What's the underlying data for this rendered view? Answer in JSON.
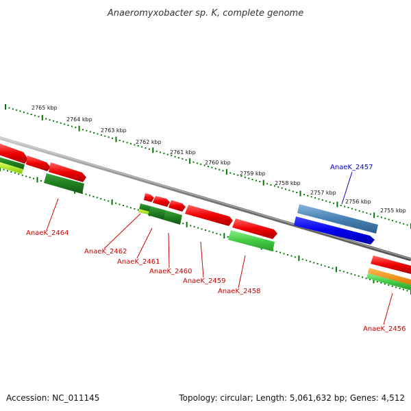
{
  "title": "Anaeromyxobacter sp. K, complete genome",
  "footer": {
    "accession": "Accession: NC_011145",
    "summary": "Topology: circular; Length: 5,061,632 bp; Genes: 4,512"
  },
  "scale_labels": [
    "2765 kbp",
    "2764 kbp",
    "2763 kbp",
    "2762 kbp",
    "2761 kbp",
    "2760 kbp",
    "2759 kbp",
    "2758 kbp",
    "2757 kbp",
    "2756 kbp",
    "2755 kbp"
  ],
  "gene_labels": [
    {
      "text": "AnaeK_2464",
      "color": "#cc0000"
    },
    {
      "text": "AnaeK_2462",
      "color": "#cc0000"
    },
    {
      "text": "AnaeK_2461",
      "color": "#cc0000"
    },
    {
      "text": "AnaeK_2460",
      "color": "#cc0000"
    },
    {
      "text": "AnaeK_2459",
      "color": "#cc0000"
    },
    {
      "text": "AnaeK_2458",
      "color": "#cc0000"
    },
    {
      "text": "AnaeK_2457",
      "color": "#0000cc"
    },
    {
      "text": "AnaeK_2456",
      "color": "#cc0000"
    }
  ],
  "colors": {
    "backbone": "#8a8a8a",
    "scale_dots": "#007700",
    "cds_forward": "#ee0000",
    "cds_reverse": "#ee0000",
    "gc_dark": "#1f8a1f",
    "gc_light": "#44cc44",
    "gc_lime": "#aaee22",
    "trna_blue": "#0000ee",
    "steelblue": "#4682b4",
    "orange": "#ee8800"
  }
}
